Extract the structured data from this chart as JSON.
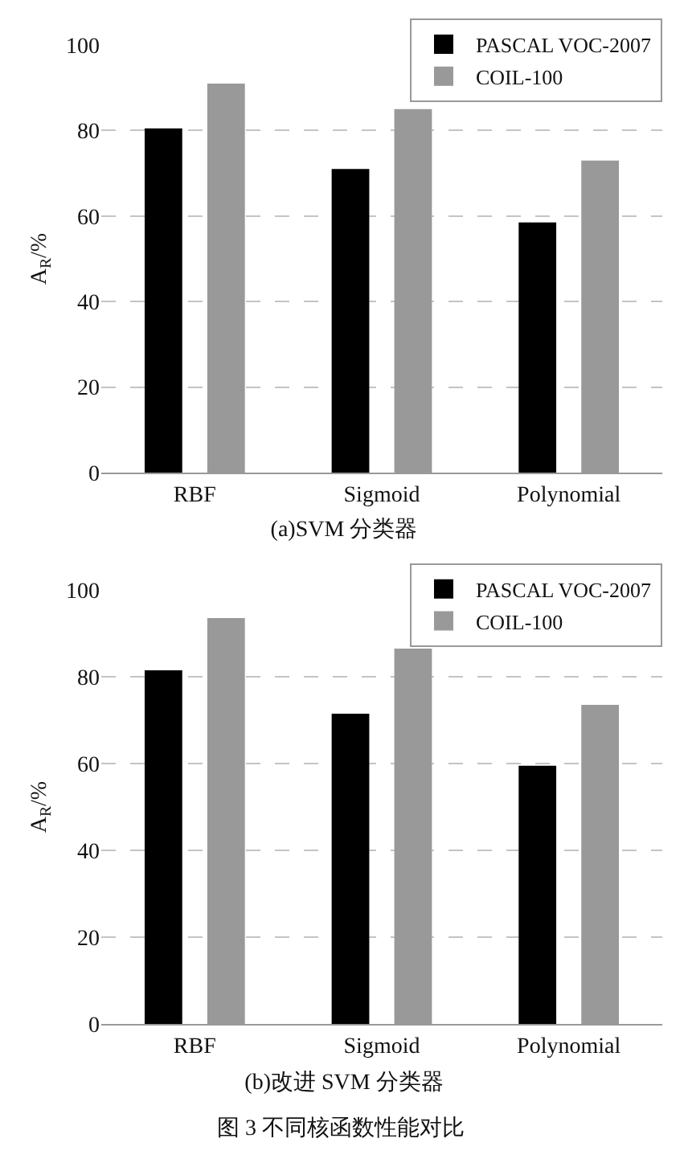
{
  "chart_data": [
    {
      "type": "bar",
      "title": "(a)SVM 分类器",
      "ylabel": "A$_{R}$/%",
      "categories": [
        "RBF",
        "Sigmoid",
        "Polynomial"
      ],
      "series": [
        {
          "name": "PASCAL VOC-2007",
          "color": "#000000",
          "values": [
            80.5,
            71,
            58.5
          ]
        },
        {
          "name": "COIL-100",
          "color": "#999999",
          "values": [
            91,
            85,
            73
          ]
        }
      ],
      "ylim": [
        0,
        100
      ],
      "yticks": [
        0,
        20,
        40,
        60,
        80,
        100
      ],
      "grid": "y",
      "legend": "top right"
    },
    {
      "type": "bar",
      "title": "(b)改进 SVM 分类器",
      "ylabel": "A$_{R}$/%",
      "categories": [
        "RBF",
        "Sigmoid",
        "Polynomial"
      ],
      "series": [
        {
          "name": "PASCAL VOC-2007",
          "color": "#000000",
          "values": [
            81.5,
            71.5,
            59.5
          ]
        },
        {
          "name": "COIL-100",
          "color": "#999999",
          "values": [
            93.5,
            86.5,
            73.5
          ]
        }
      ],
      "ylim": [
        0,
        100
      ],
      "yticks": [
        0,
        20,
        40,
        60,
        80,
        100
      ],
      "grid": "y",
      "legend": "top right",
      "annotations": [
        "图 3 不同核函数性能对比"
      ]
    }
  ]
}
